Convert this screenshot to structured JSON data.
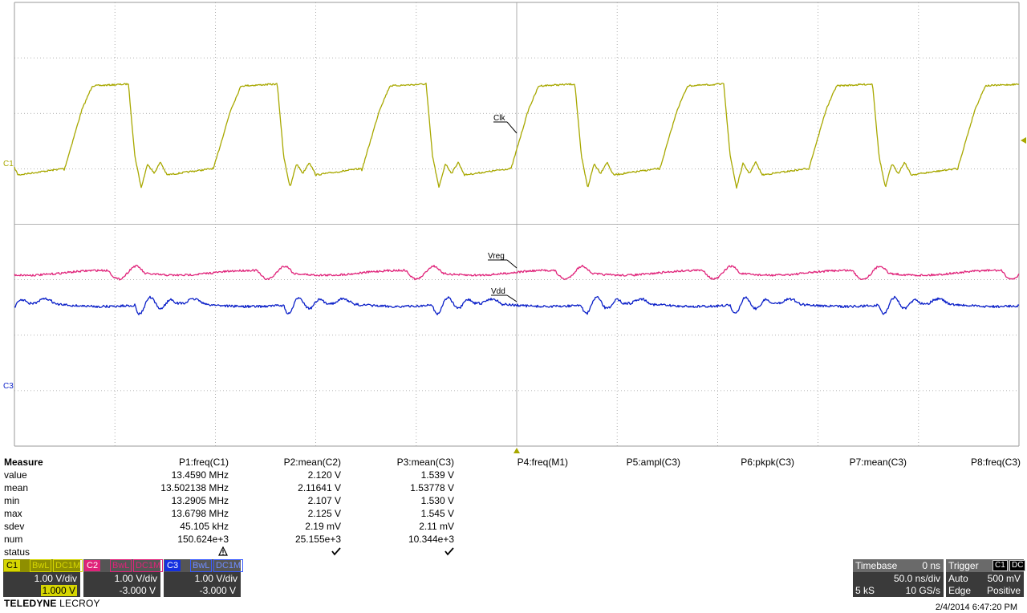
{
  "trace_labels": {
    "clk": "Clk",
    "vreg": "Vreg",
    "vdd": "Vdd",
    "c1": "C1",
    "c3": "C3"
  },
  "colors": {
    "c1": "#a8a800",
    "c2": "#e0237a",
    "c3": "#0a1fc8",
    "grid": "#9a9a9a"
  },
  "measure": {
    "title": "Measure",
    "row_labels": [
      "value",
      "mean",
      "min",
      "max",
      "sdev",
      "num",
      "status"
    ],
    "params": [
      {
        "name": "P1:freq(C1)",
        "values": [
          "13.4590 MHz",
          "13.502138 MHz",
          "13.2905 MHz",
          "13.6798 MHz",
          "45.105 kHz",
          "150.624e+3"
        ],
        "status": "warning-icon"
      },
      {
        "name": "P2:mean(C2)",
        "values": [
          "2.120 V",
          "2.11641 V",
          "2.107 V",
          "2.125 V",
          "2.19 mV",
          "25.155e+3"
        ],
        "status": "check-icon"
      },
      {
        "name": "P3:mean(C3)",
        "values": [
          "1.539 V",
          "1.53778 V",
          "1.530 V",
          "1.545 V",
          "2.11 mV",
          "10.344e+3"
        ],
        "status": "check-icon"
      },
      {
        "name": "P4:freq(M1)"
      },
      {
        "name": "P5:ampl(C3)"
      },
      {
        "name": "P6:pkpk(C3)"
      },
      {
        "name": "P7:mean(C3)"
      },
      {
        "name": "P8:freq(C3)"
      }
    ]
  },
  "channels": [
    {
      "tag": "C1",
      "bw": "BwL",
      "coupling": "DC1M",
      "vdiv": "1.00 V/div",
      "offset": "1.000 V"
    },
    {
      "tag": "C2",
      "bw": "BwL",
      "coupling": "DC1M",
      "vdiv": "1.00 V/div",
      "offset": "-3.000 V"
    },
    {
      "tag": "C3",
      "bw": "BwL",
      "coupling": "DC1M",
      "vdiv": "1.00 V/div",
      "offset": "-3.000 V"
    }
  ],
  "timebase": {
    "label": "Timebase",
    "delay": "0 ns",
    "tdiv": "50.0 ns/div",
    "samples": "5 kS",
    "rate": "10 GS/s"
  },
  "trigger": {
    "label": "Trigger",
    "src": "C1",
    "coupling": "DC",
    "mode": "Auto",
    "level": "500 mV",
    "type": "Edge",
    "slope": "Positive"
  },
  "brand": {
    "bold": "TELEDYNE",
    "rest": " LECROY"
  },
  "timestamp": "2/4/2014 6:47:20 PM"
}
